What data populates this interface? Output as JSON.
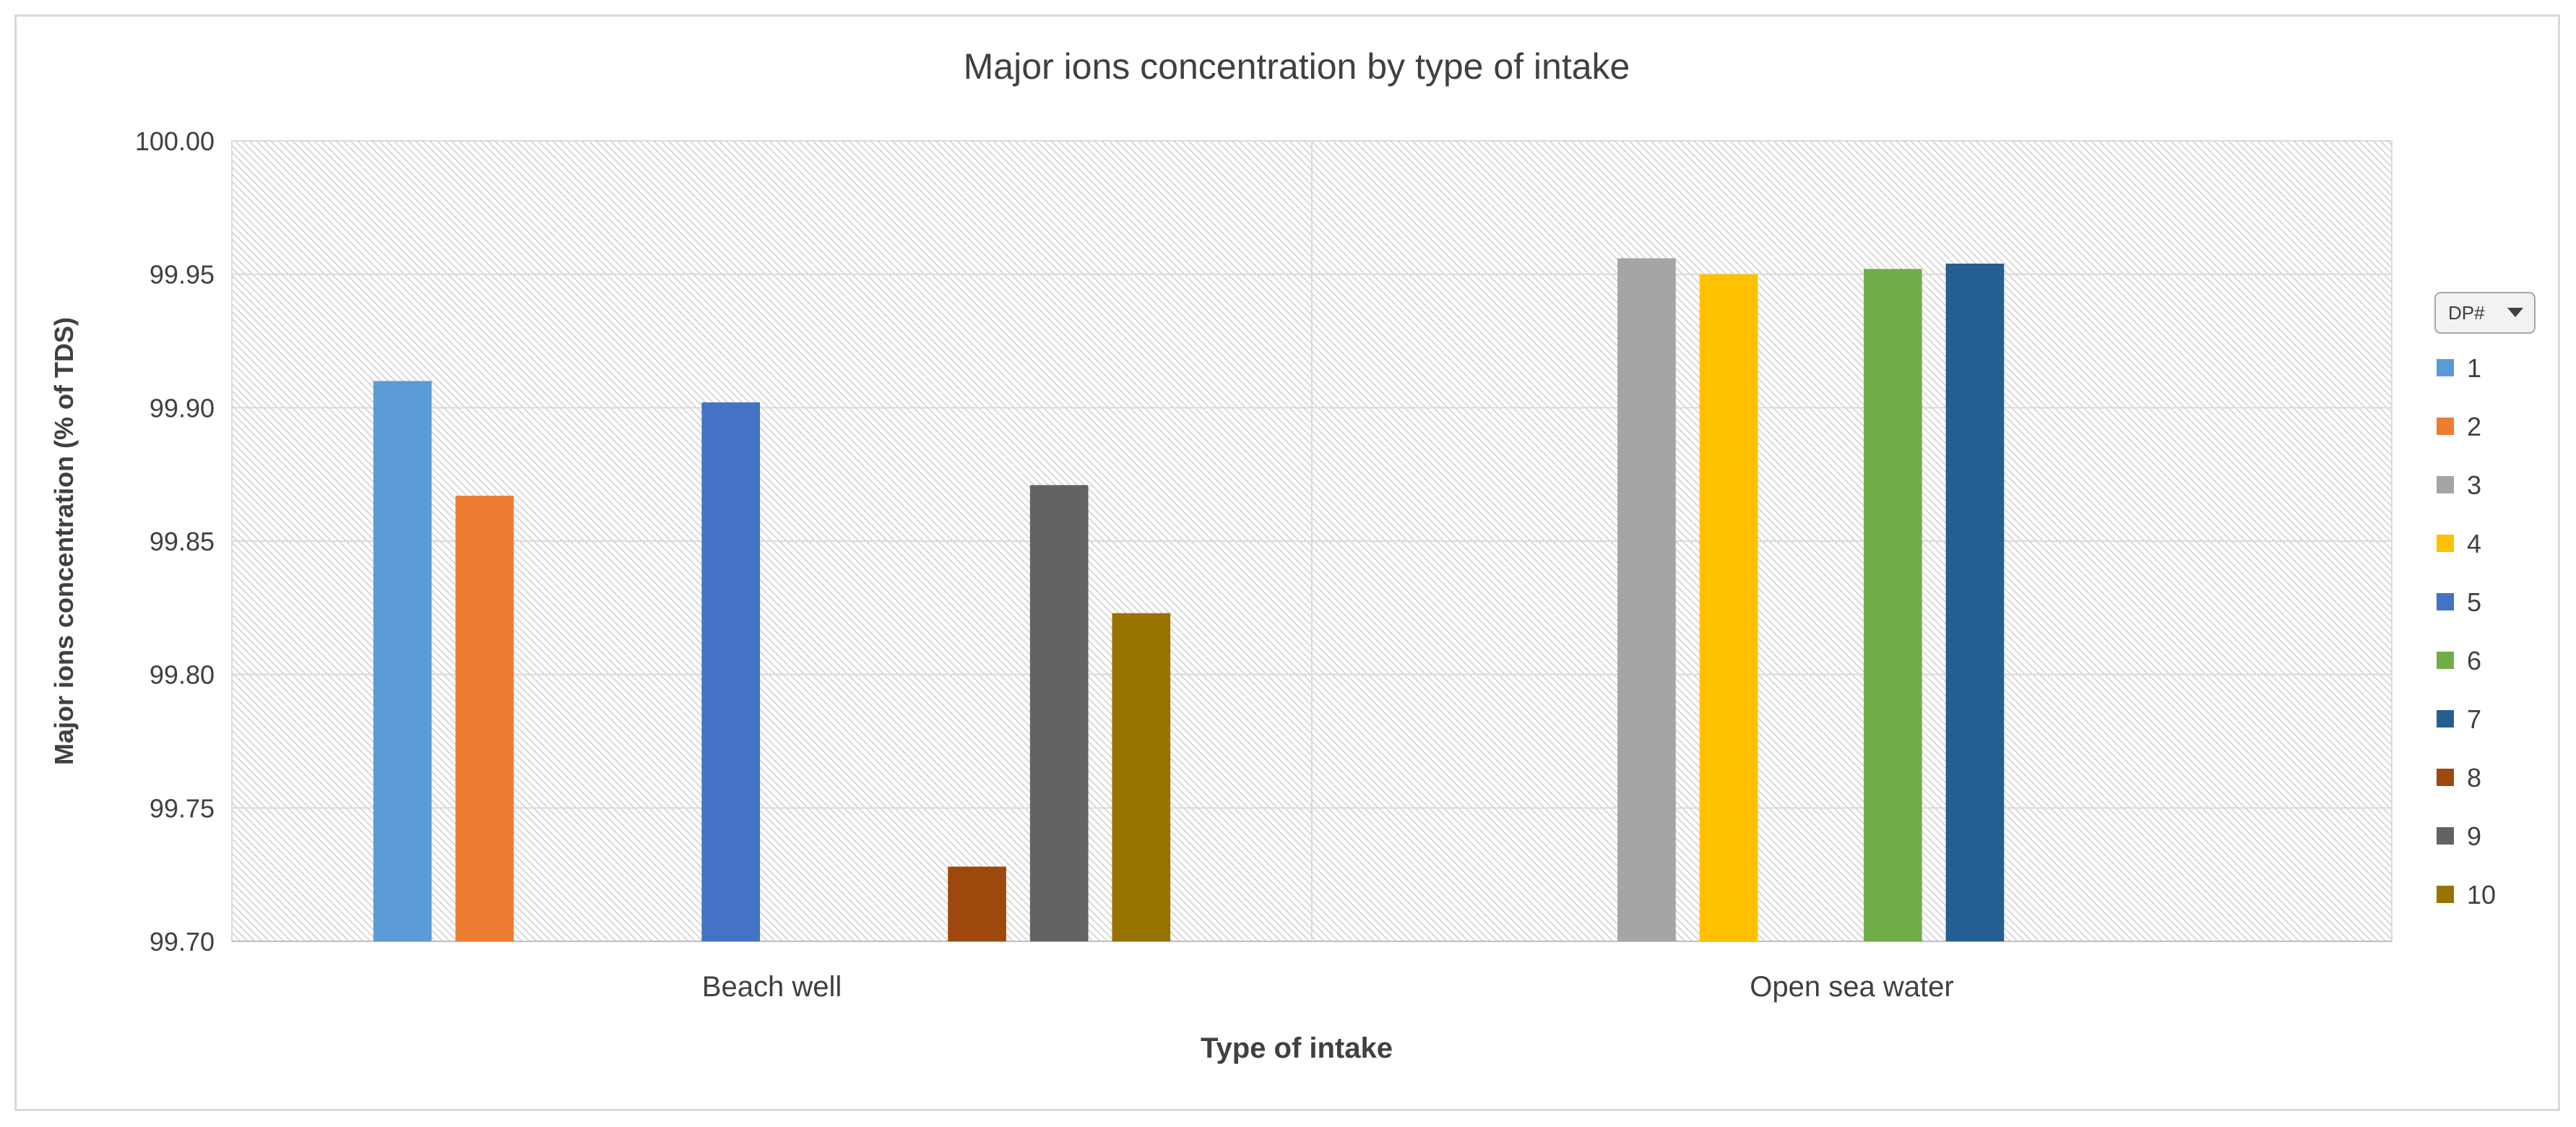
{
  "chart_data": {
    "type": "bar",
    "title": "Major ions concentration by type of intake",
    "xlabel": "Type of intake",
    "ylabel": "Major ions concentration (% of TDS)",
    "categories": [
      "Beach well",
      "Open sea water"
    ],
    "ylim": [
      99.7,
      100.0
    ],
    "yticks": [
      "99.70",
      "99.75",
      "99.80",
      "99.85",
      "99.90",
      "99.95",
      "100.00"
    ],
    "grid": true,
    "legend_position": "right",
    "legend_header": "DP#",
    "series": [
      {
        "name": "1",
        "color": "#5b9bd5",
        "values": [
          99.91,
          null
        ]
      },
      {
        "name": "2",
        "color": "#ed7d31",
        "values": [
          99.867,
          null
        ]
      },
      {
        "name": "3",
        "color": "#a5a5a5",
        "values": [
          null,
          99.956
        ]
      },
      {
        "name": "4",
        "color": "#ffc000",
        "values": [
          null,
          99.95
        ]
      },
      {
        "name": "5",
        "color": "#4472c4",
        "values": [
          99.902,
          null
        ]
      },
      {
        "name": "6",
        "color": "#70ad47",
        "values": [
          null,
          99.952
        ]
      },
      {
        "name": "7",
        "color": "#255e91",
        "values": [
          null,
          99.954
        ]
      },
      {
        "name": "8",
        "color": "#9e480e",
        "values": [
          99.728,
          null
        ]
      },
      {
        "name": "9",
        "color": "#636363",
        "values": [
          99.871,
          null
        ]
      },
      {
        "name": "10",
        "color": "#997300",
        "values": [
          99.823,
          null
        ]
      }
    ]
  }
}
